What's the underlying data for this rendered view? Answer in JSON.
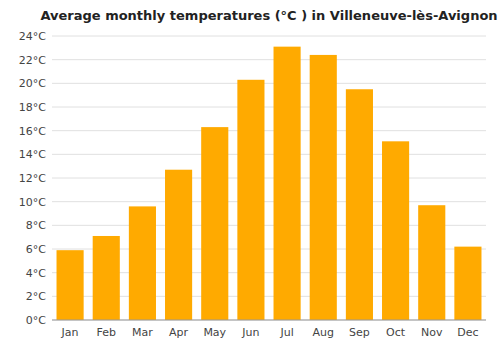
{
  "chart_data": {
    "type": "bar",
    "title": "Average monthly temperatures (°C ) in Villeneuve-lès-Avignon",
    "categories": [
      "Jan",
      "Feb",
      "Mar",
      "Apr",
      "May",
      "Jun",
      "Jul",
      "Aug",
      "Sep",
      "Oct",
      "Nov",
      "Dec"
    ],
    "values": [
      5.9,
      7.1,
      9.6,
      12.7,
      16.3,
      20.3,
      23.1,
      22.4,
      19.5,
      15.1,
      9.7,
      6.2
    ],
    "color": "#FFAA00",
    "ylim": [
      0,
      24
    ],
    "yticks": [
      {
        "value": 0,
        "label": "0°C"
      },
      {
        "value": 2,
        "label": "2°C"
      },
      {
        "value": 4,
        "label": "4°C"
      },
      {
        "value": 6,
        "label": "6°C"
      },
      {
        "value": 8,
        "label": "8°C"
      },
      {
        "value": 10,
        "label": "10°C"
      },
      {
        "value": 12,
        "label": "12°C"
      },
      {
        "value": 14,
        "label": "14°C"
      },
      {
        "value": 16,
        "label": "16°C"
      },
      {
        "value": 18,
        "label": "18°C"
      },
      {
        "value": 20,
        "label": "20°C"
      },
      {
        "value": 22,
        "label": "22°C"
      },
      {
        "value": 24,
        "label": "24°C"
      }
    ],
    "grid": true
  }
}
